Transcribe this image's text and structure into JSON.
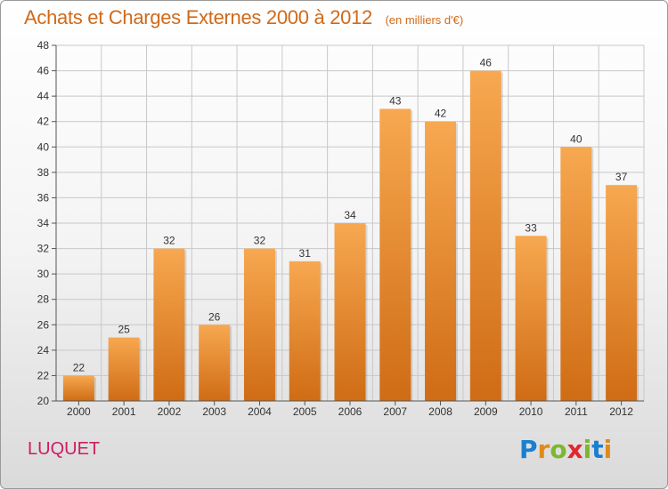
{
  "header": {
    "title": "Achats et Charges Externes 2000 à 2012",
    "subtitle": "(en milliers d'€)"
  },
  "footer": {
    "commune": "LUQUET",
    "logo": {
      "letters": [
        "P",
        "r",
        "o",
        "x",
        "i",
        "t",
        "i"
      ],
      "colors": [
        "#1a7fd0",
        "#e08a1e",
        "#7cb82f",
        "#e0282e",
        "#7cb82f",
        "#1a7fd0",
        "#e08a1e"
      ]
    }
  },
  "colors": {
    "bar_top": "#f7a850",
    "bar_bottom": "#cf6c15",
    "grid": "#c8c8c8",
    "axis": "#555555"
  },
  "chart_data": {
    "type": "bar",
    "title": "Achats et Charges Externes 2000 à 2012",
    "subtitle": "(en milliers d'€)",
    "categories": [
      "2000",
      "2001",
      "2002",
      "2003",
      "2004",
      "2005",
      "2006",
      "2007",
      "2008",
      "2009",
      "2010",
      "2011",
      "2012"
    ],
    "values": [
      22,
      25,
      32,
      26,
      32,
      31,
      34,
      43,
      42,
      46,
      33,
      40,
      37
    ],
    "ylim": [
      20,
      48
    ],
    "yticks": [
      20,
      22,
      24,
      26,
      28,
      30,
      32,
      34,
      36,
      38,
      40,
      42,
      44,
      46,
      48
    ],
    "grid": true,
    "legend": "none",
    "xlabel": "",
    "ylabel": ""
  }
}
